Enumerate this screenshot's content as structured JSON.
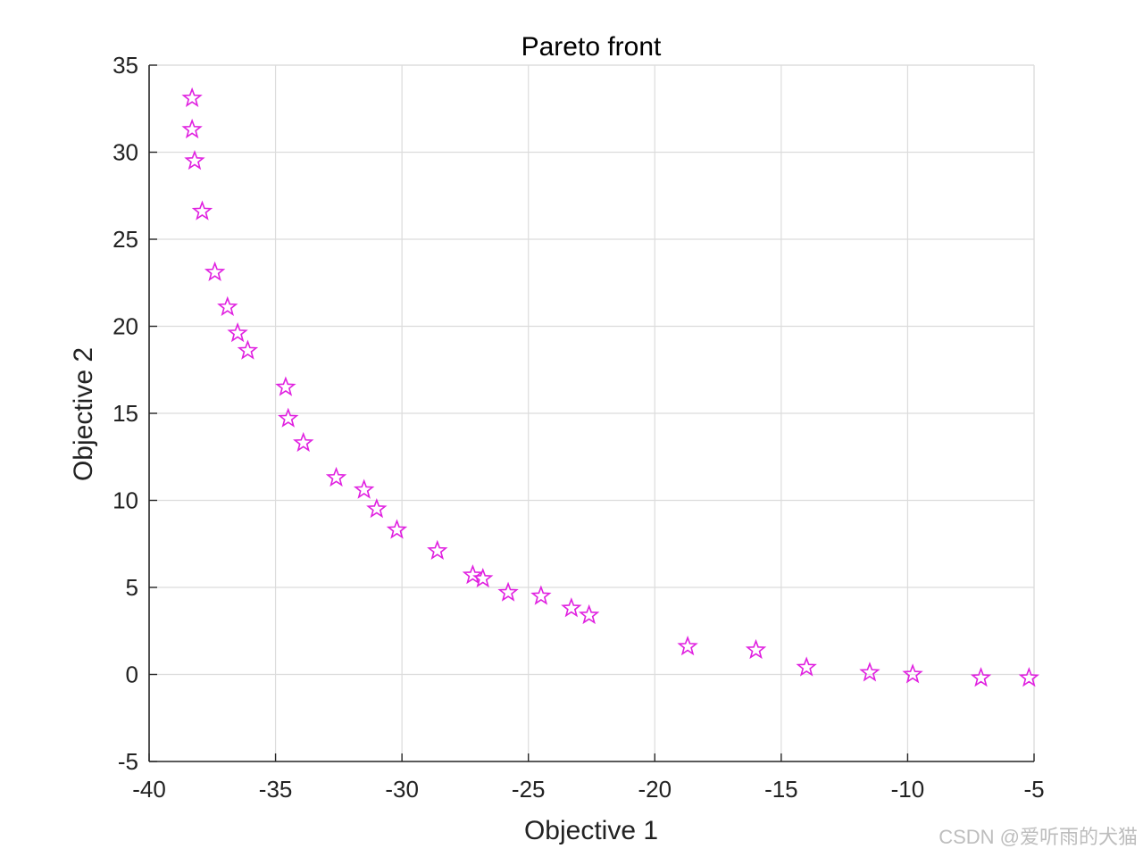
{
  "chart_data": {
    "type": "scatter",
    "title": "Pareto front",
    "xlabel": "Objective 1",
    "ylabel": "Objective 2",
    "xlim": [
      -40,
      -5
    ],
    "ylim": [
      -5,
      35
    ],
    "xticks": [
      -40,
      -35,
      -30,
      -25,
      -20,
      -15,
      -10,
      -5
    ],
    "yticks": [
      -5,
      0,
      5,
      10,
      15,
      20,
      25,
      30,
      35
    ],
    "grid": true,
    "marker": "star",
    "marker_color": "#e020e0",
    "points": [
      {
        "x": -38.3,
        "y": 33.1
      },
      {
        "x": -38.3,
        "y": 31.3
      },
      {
        "x": -38.2,
        "y": 29.5
      },
      {
        "x": -37.9,
        "y": 26.6
      },
      {
        "x": -37.4,
        "y": 23.1
      },
      {
        "x": -36.9,
        "y": 21.1
      },
      {
        "x": -36.5,
        "y": 19.6
      },
      {
        "x": -36.1,
        "y": 18.6
      },
      {
        "x": -34.6,
        "y": 16.5
      },
      {
        "x": -34.5,
        "y": 14.7
      },
      {
        "x": -33.9,
        "y": 13.3
      },
      {
        "x": -32.6,
        "y": 11.3
      },
      {
        "x": -31.5,
        "y": 10.6
      },
      {
        "x": -31.0,
        "y": 9.5
      },
      {
        "x": -30.2,
        "y": 8.3
      },
      {
        "x": -28.6,
        "y": 7.1
      },
      {
        "x": -27.2,
        "y": 5.7
      },
      {
        "x": -26.8,
        "y": 5.5
      },
      {
        "x": -25.8,
        "y": 4.7
      },
      {
        "x": -24.5,
        "y": 4.5
      },
      {
        "x": -23.3,
        "y": 3.8
      },
      {
        "x": -22.6,
        "y": 3.4
      },
      {
        "x": -18.7,
        "y": 1.6
      },
      {
        "x": -16.0,
        "y": 1.4
      },
      {
        "x": -14.0,
        "y": 0.4
      },
      {
        "x": -11.5,
        "y": 0.1
      },
      {
        "x": -9.8,
        "y": 0.0
      },
      {
        "x": -7.1,
        "y": -0.2
      },
      {
        "x": -5.2,
        "y": -0.2
      }
    ]
  },
  "watermark": "CSDN @爱听雨的犬猫"
}
